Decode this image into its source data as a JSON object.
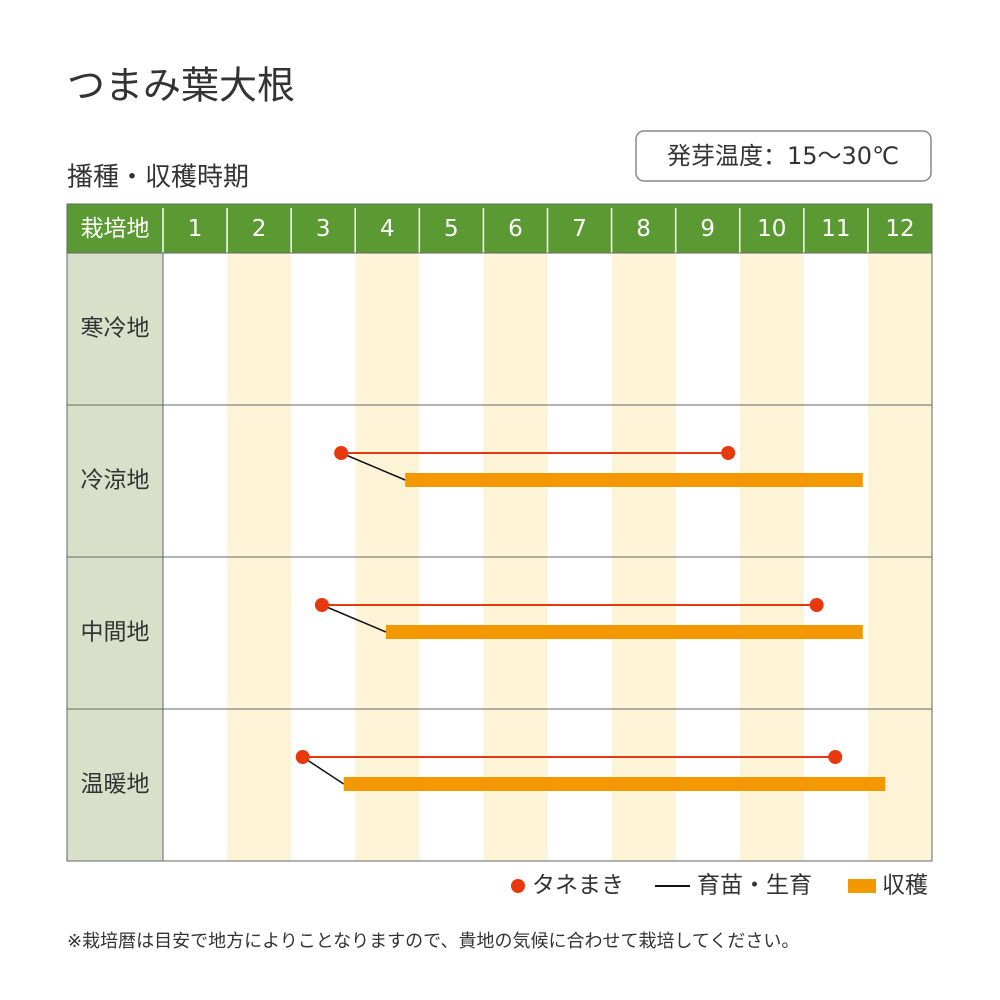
{
  "chart_data": {
    "type": "timeline",
    "title": "つまみ葉大根",
    "subtitle": "播種・収穫時期",
    "badge": "発芽温度：15～30℃",
    "row_header": "栽培地",
    "categories": [
      "1",
      "2",
      "3",
      "4",
      "5",
      "6",
      "7",
      "8",
      "9",
      "10",
      "11",
      "12"
    ],
    "xlim": [
      0,
      12
    ],
    "rows": [
      {
        "name": "寒冷地"
      },
      {
        "name": "冷涼地",
        "sowing": [
          2.78,
          8.82
        ],
        "harvest": [
          3.78,
          10.92
        ]
      },
      {
        "name": "中間地",
        "sowing": [
          2.48,
          10.2
        ],
        "harvest": [
          3.48,
          10.92
        ]
      },
      {
        "name": "温暖地",
        "sowing": [
          2.18,
          10.49
        ],
        "harvest": [
          2.82,
          11.27
        ]
      }
    ],
    "legend": [
      {
        "name": "タネまき",
        "color": "#e8380d"
      },
      {
        "name": "育苗・生育",
        "color": "#111111"
      },
      {
        "name": "収穫",
        "color": "#f39800"
      }
    ],
    "note": "※栽培暦は目安で地方によりことなりますので、貴地の気候に合わせて栽培してください。"
  }
}
